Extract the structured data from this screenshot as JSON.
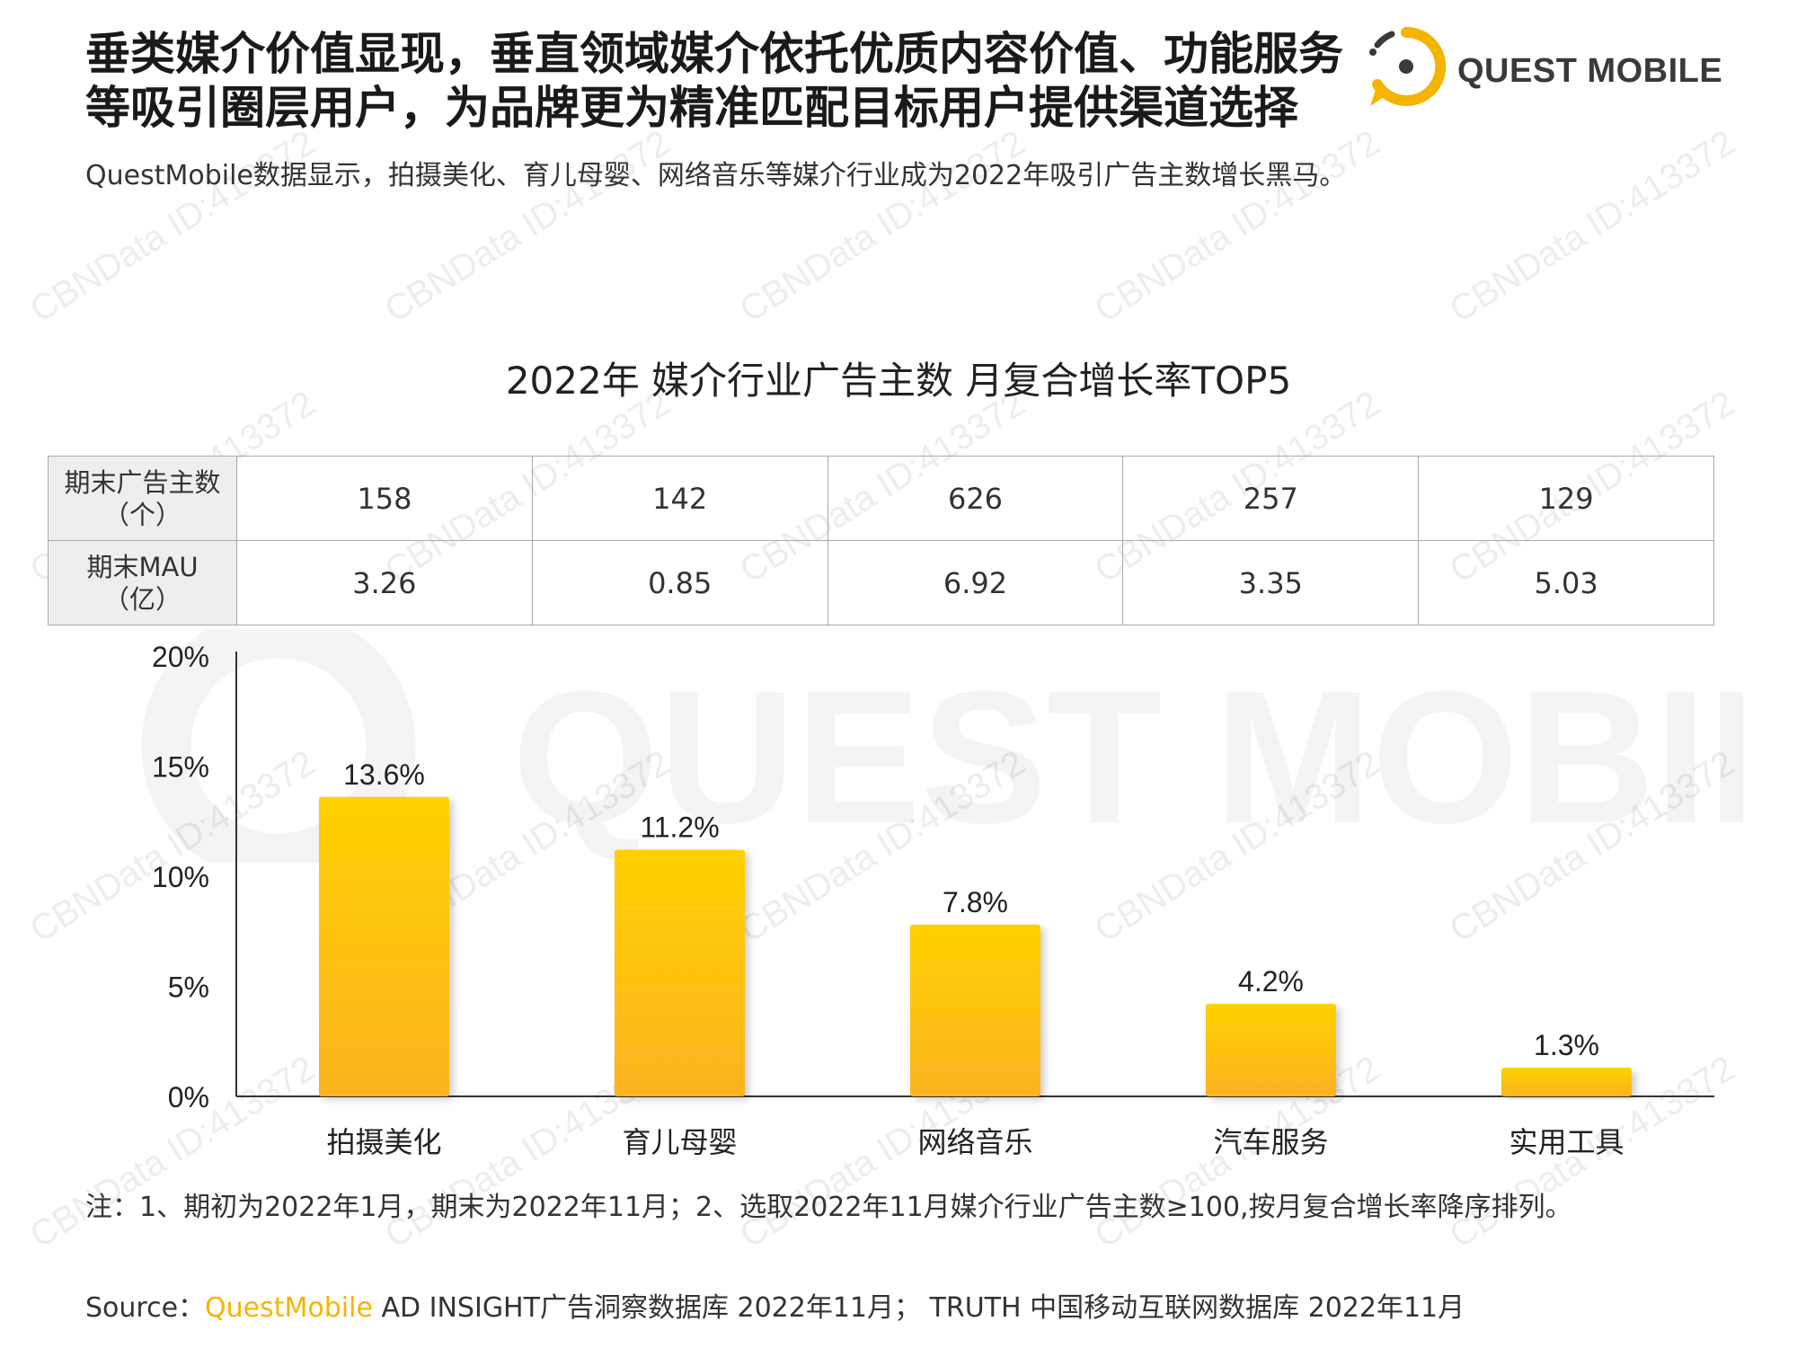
{
  "headline": {
    "line1": "垂类媒介价值显现，垂直领域媒介依托优质内容价值、功能服务",
    "line2": "等吸引圈层用户，为品牌更为精准匹配目标用户提供渠道选择"
  },
  "subtitle": "QuestMobile数据显示，拍摄美化、育儿母婴、网络音乐等媒介行业成为2022年吸引广告主数增长黑马。",
  "logo": {
    "text": "QUEST MOBILE",
    "icon": "quest-mobile-logo-icon",
    "color": "#f4b400"
  },
  "watermark": {
    "text": "CBNData ID:413372",
    "big_text": "QUEST MOBILE"
  },
  "table": {
    "rows": [
      {
        "label_line1": "期末广告主数",
        "label_line2": "（个）",
        "values": [
          "158",
          "142",
          "626",
          "257",
          "129"
        ]
      },
      {
        "label_line1": "期末MAU",
        "label_line2": "（亿）",
        "values": [
          "3.26",
          "0.85",
          "6.92",
          "3.35",
          "5.03"
        ]
      }
    ]
  },
  "chart_data": {
    "type": "bar",
    "title": "2022年 媒介行业广告主数 月复合增长率TOP5",
    "categories": [
      "拍摄美化",
      "育儿母婴",
      "网络音乐",
      "汽车服务",
      "实用工具"
    ],
    "values": [
      13.6,
      11.2,
      7.8,
      4.2,
      1.3
    ],
    "value_labels": [
      "13.6%",
      "11.2%",
      "7.8%",
      "4.2%",
      "1.3%"
    ],
    "ylim": [
      0,
      20
    ],
    "yticks": [
      "0%",
      "5%",
      "10%",
      "15%",
      "20%"
    ],
    "xlabel": "",
    "ylabel": "",
    "grid": false,
    "bar_color_top": "#ffd000",
    "bar_color_bottom": "#fbb320"
  },
  "note": "注：1、期初为2022年1月，期末为2022年11月；2、选取2022年11月媒介行业广告主数≥100,按月复合增长率降序排列。",
  "source": {
    "prefix": "Source：",
    "brand": "QuestMobile",
    "rest": " AD INSIGHT广告洞察数据库 2022年11月；  TRUTH 中国移动互联网数据库 2022年11月"
  }
}
